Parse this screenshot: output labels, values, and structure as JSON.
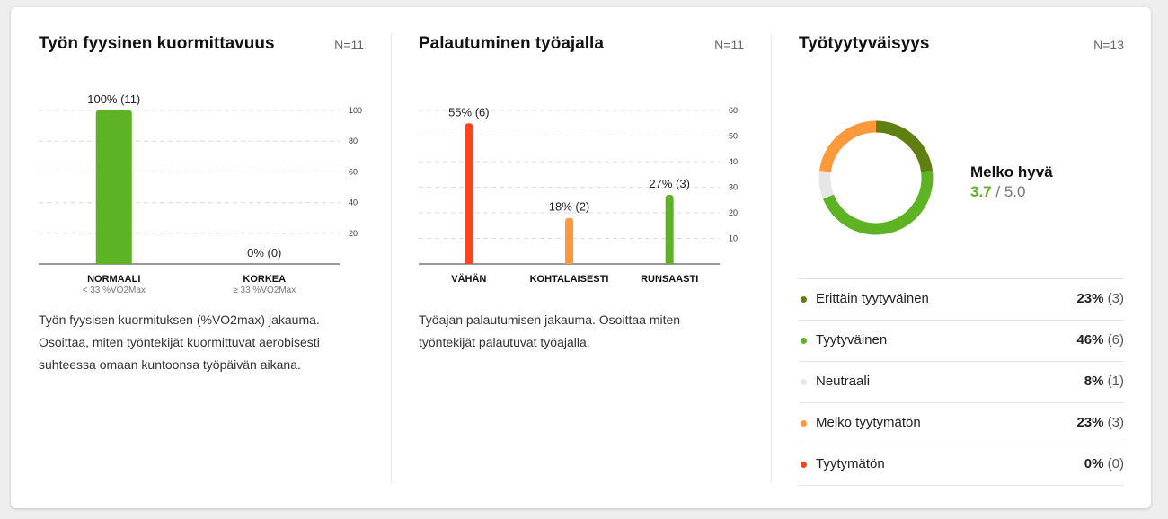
{
  "panels": [
    {
      "title": "Työn fyysinen kuormittavuus",
      "n": "N=11",
      "description": "Työn fyysisen kuormituksen (%VO2max) jakauma. Osoittaa, miten työntekijät kuormittuvat aerobisesti suhteessa omaan kuntoonsa työpäivän aikana."
    },
    {
      "title": "Palautuminen työajalla",
      "n": "N=11",
      "description": "Työajan palautumisen jakauma. Osoittaa miten työntekijät palautuvat työajalla."
    },
    {
      "title": "Työtyytyväisyys",
      "n": "N=13"
    }
  ],
  "colors": {
    "green": "#5db324",
    "dark_green": "#5f7f10",
    "orange": "#ff9a3c",
    "red": "#ff4422",
    "gray": "#e6e6e6"
  },
  "satisfaction": {
    "label": "Melko hyvä",
    "score": "3.7",
    "max": "/ 5.0",
    "items": [
      {
        "label": "Erittäin tyytyväinen",
        "pct": "23%",
        "count": "(3)",
        "color": "#5f7f10"
      },
      {
        "label": "Tyytyväinen",
        "pct": "46%",
        "count": "(6)",
        "color": "#5db324"
      },
      {
        "label": "Neutraali",
        "pct": "8%",
        "count": "(1)",
        "color": "#e6e6e6"
      },
      {
        "label": "Melko tyytymätön",
        "pct": "23%",
        "count": "(3)",
        "color": "#ff9a3c"
      },
      {
        "label": "Tyytymätön",
        "pct": "0%",
        "count": "(0)",
        "color": "#ff4422"
      }
    ]
  },
  "chart_data": [
    {
      "type": "bar",
      "title": "Työn fyysinen kuormittavuus",
      "categories": [
        "NORMAALI",
        "KORKEA"
      ],
      "subcategories": [
        "< 33 %VO2Max",
        "≥ 33 %VO2Max"
      ],
      "values": [
        100,
        0
      ],
      "labels": [
        "100% (11)",
        "0% (0)"
      ],
      "colors": [
        "#5db324",
        "#5db324"
      ],
      "yticks": [
        20,
        40,
        60,
        80,
        100
      ],
      "ylim": [
        0,
        100
      ]
    },
    {
      "type": "bar",
      "title": "Palautuminen työajalla",
      "categories": [
        "VÄHÄN",
        "KOHTALAISESTI",
        "RUNSAASTI"
      ],
      "values": [
        55,
        18,
        27
      ],
      "labels": [
        "55% (6)",
        "18% (2)",
        "27% (3)"
      ],
      "colors": [
        "#ff4422",
        "#ff9a3c",
        "#5db324"
      ],
      "yticks": [
        10,
        20,
        30,
        40,
        50,
        60
      ],
      "ylim": [
        0,
        60
      ]
    },
    {
      "type": "pie",
      "title": "Työtyytyväisyys",
      "categories": [
        "Erittäin tyytyväinen",
        "Tyytyväinen",
        "Neutraali",
        "Melko tyytymätön",
        "Tyytymätön"
      ],
      "values": [
        23,
        46,
        8,
        23,
        0
      ],
      "colors": [
        "#5f7f10",
        "#5db324",
        "#e6e6e6",
        "#ff9a3c",
        "#ff4422"
      ]
    }
  ]
}
